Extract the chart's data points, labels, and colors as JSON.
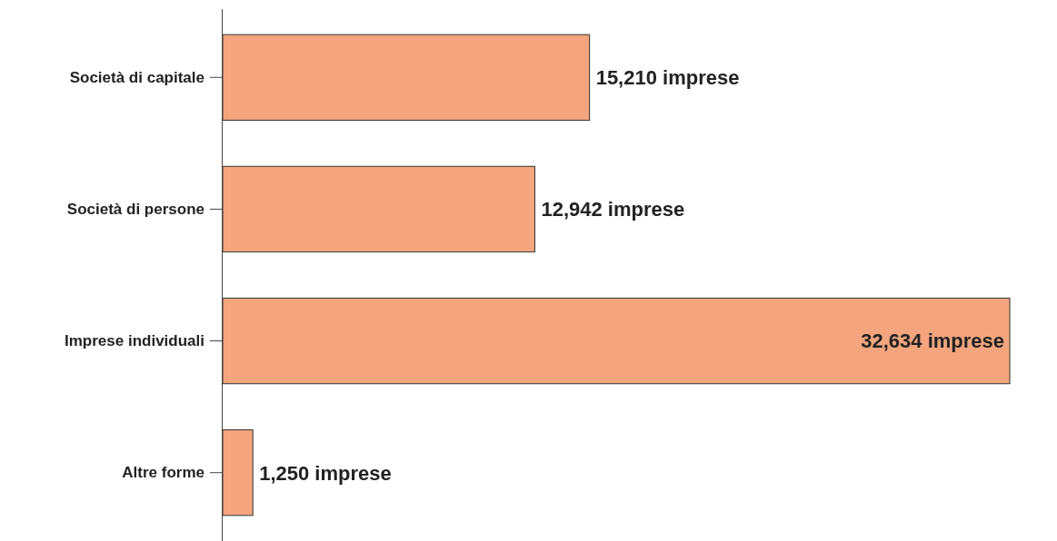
{
  "chart_data": {
    "type": "bar",
    "orientation": "horizontal",
    "categories": [
      "Società di capitale",
      "Società di persone",
      "Imprese individuali",
      "Altre forme"
    ],
    "values": [
      15210,
      12942,
      32634,
      1250
    ],
    "value_labels": [
      "15,210 imprese",
      "12,942 imprese",
      "32,634 imprese",
      "1,250 imprese"
    ],
    "color": "#f4a57d",
    "grid": false,
    "tick_labels": "y"
  }
}
